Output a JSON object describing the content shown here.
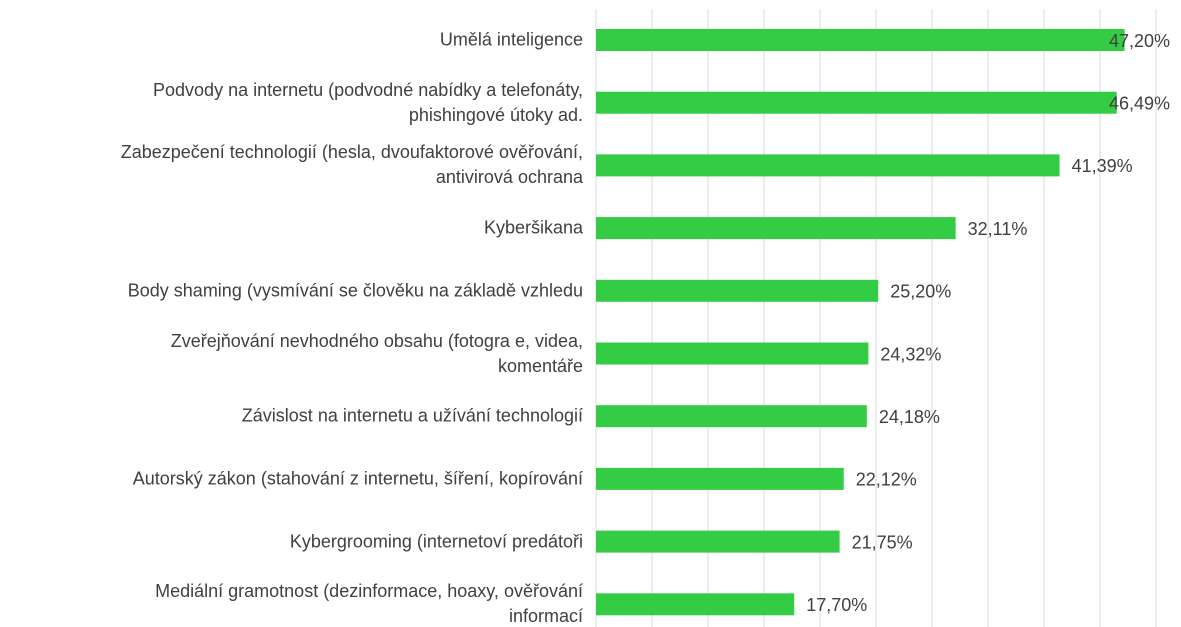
{
  "chart_data": {
    "type": "bar",
    "orientation": "horizontal",
    "categories": [
      "Umělá inteligence",
      "Podvody na internetu (podvodné nabídky a telefonáty,\nphishingové útoky ad.",
      "Zabezpečení technologií (hesla, dvoufaktorové ověřování,\nantivirová ochrana",
      "Kyberšikana",
      "Body shaming (vysmívání se člověku na základě vzhledu",
      "Zveřejňování nevhodného obsahu (fotogra e, videa,\nkomentáře",
      "Závislost na internetu a užívání technologií",
      "Autorský zákon (stahování z internetu, šíření, kopírování",
      "Kybergrooming (internetoví predátoři",
      "Mediální gramotnost (dezinformace, hoaxy, ověřování\ninformací"
    ],
    "values": [
      47.2,
      46.49,
      41.39,
      32.11,
      25.2,
      24.32,
      24.18,
      22.12,
      21.75,
      17.7
    ],
    "value_labels": [
      "47,20%",
      "46,49%",
      "41,39%",
      "32,11%",
      "25,20%",
      "24,32%",
      "24,18%",
      "22,12%",
      "21,75%",
      "17,70%"
    ],
    "color": "#33cc44",
    "xlim": [
      0,
      50
    ],
    "xticks": [
      0,
      5,
      10,
      15,
      20,
      25,
      30,
      35,
      40,
      45,
      50
    ],
    "grid": true
  }
}
